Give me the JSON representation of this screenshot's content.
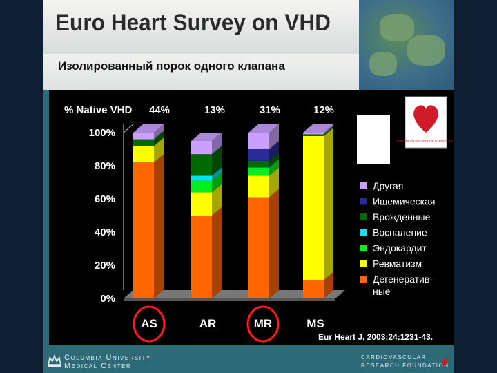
{
  "title": "Euro Heart Survey on VHD",
  "subtitle": "Изолированный порок одного клапана",
  "chart_data": {
    "type": "bar",
    "stacked": true,
    "header_label": "% Native VHD",
    "categories": [
      "AS",
      "AR",
      "MR",
      "MS"
    ],
    "native_pct": [
      "44%",
      "13%",
      "31%",
      "12%"
    ],
    "ylim": [
      0,
      100
    ],
    "ytick_labels": [
      "0%",
      "20%",
      "40%",
      "60%",
      "80%",
      "100%"
    ],
    "circled": [
      "AS",
      "MR"
    ],
    "series": [
      {
        "name": "Дегенератив-ные",
        "legend_lines": [
          "Дегенератив-",
          "ные"
        ],
        "color": "#ff6600",
        "values": [
          82,
          50,
          61,
          11
        ]
      },
      {
        "name": "Ревматизм",
        "color": "#ffff00",
        "values": [
          10,
          14,
          13,
          87
        ]
      },
      {
        "name": "Эндокардит",
        "color": "#00ee22",
        "values": [
          0,
          7,
          5,
          0
        ]
      },
      {
        "name": "Воспаление",
        "color": "#00e5ee",
        "values": [
          0,
          3,
          0,
          0
        ]
      },
      {
        "name": "Врожденные",
        "color": "#006a00",
        "values": [
          4,
          13,
          4,
          1
        ]
      },
      {
        "name": "Ишемическая",
        "color": "#2a2a9a",
        "values": [
          0,
          0,
          7,
          0
        ]
      },
      {
        "name": "Другая",
        "color": "#c9a0ff",
        "values": [
          4,
          8,
          10,
          1
        ]
      }
    ],
    "legend_order": [
      "Другая",
      "Ишемическая",
      "Врожденные",
      "Воспаление",
      "Эндокардит",
      "Ревматизм",
      "Дегенератив-ные"
    ],
    "citation": "Eur Heart J. 2003;24:1231-43."
  },
  "logo_text": "EUROPEAN SOCIETY OF CARDIOLOGY",
  "footer": {
    "left_line1": "Columbia University",
    "left_line2": "Medical Center",
    "right_line1": "CARDIOVASCULAR",
    "right_line2": "RESEARCH FOUNDATION"
  }
}
